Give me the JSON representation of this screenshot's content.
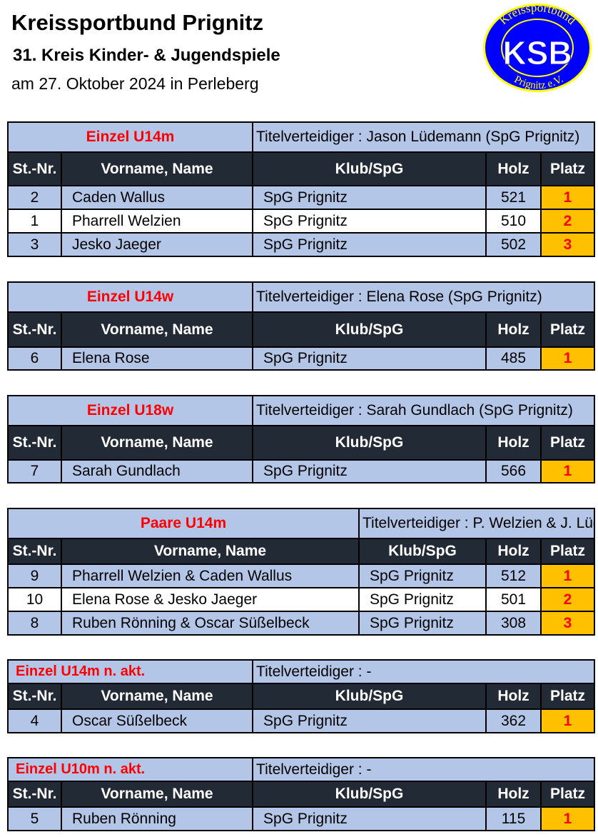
{
  "header": {
    "org": "Kreissportbund Prignitz",
    "event": "31. Kreis Kinder- & Jugendspiele",
    "date_place": "am 27. Oktober 2024 in Perleberg",
    "logo_text": [
      "Kreissportbund",
      "KSB",
      "Prignitz e.V."
    ]
  },
  "colors": {
    "title_bg": "#b4c6e7",
    "header_bg": "#222a35",
    "place_bg": "#ffc000",
    "accent_red": "#ff0000",
    "logo_blue": "#0000ff",
    "logo_yellow": "#ffff00"
  },
  "sections": [
    {
      "title": "Einzel U14m",
      "defender": "Titelverteidiger : Jason Lüdemann (SpG Prignitz)",
      "columns": [
        "St.-Nr.",
        "Vorname, Name",
        "Klub/SpG",
        "Holz",
        "Platz"
      ],
      "rows": [
        [
          "2",
          "Caden Wallus",
          "SpG Prignitz",
          "521",
          "1"
        ],
        [
          "1",
          "Pharrell Welzien",
          "SpG Prignitz",
          "510",
          "2"
        ],
        [
          "3",
          "Jesko Jaeger",
          "SpG Prignitz",
          "502",
          "3"
        ]
      ]
    },
    {
      "title": "Einzel U14w",
      "defender": "Titelverteidiger : Elena Rose (SpG Prignitz)",
      "columns": [
        "St.-Nr.",
        "Vorname, Name",
        "Klub/SpG",
        "Holz",
        "Platz"
      ],
      "rows": [
        [
          "6",
          "Elena Rose",
          "SpG Prignitz",
          "485",
          "1"
        ]
      ]
    },
    {
      "title": "Einzel U18w",
      "defender": "Titelverteidiger : Sarah Gundlach (SpG Prignitz)",
      "columns": [
        "St.-Nr.",
        "Vorname, Name",
        "Klub/SpG",
        "Holz",
        "Platz"
      ],
      "rows": [
        [
          "7",
          "Sarah Gundlach",
          "SpG Prignitz",
          "566",
          "1"
        ]
      ]
    },
    {
      "title": "Paare U14m",
      "defender": "Titelverteidiger : P. Welzien & J. Lüdemann (SpG PR)",
      "columns": [
        "St.-Nr.",
        "Vorname, Name",
        "Klub/SpG",
        "Holz",
        "Platz"
      ],
      "rows": [
        [
          "9",
          "Pharrell Welzien & Caden Wallus",
          "SpG Prignitz",
          "512",
          "1"
        ],
        [
          "10",
          "Elena Rose & Jesko Jaeger",
          "SpG Prignitz",
          "501",
          "2"
        ],
        [
          "8",
          "Ruben Rönning & Oscar Süßelbeck",
          "SpG Prignitz",
          "308",
          "3"
        ]
      ]
    },
    {
      "title": "Einzel U14m n. akt.",
      "defender": "Titelverteidiger : -",
      "columns": [
        "St.-Nr.",
        "Vorname, Name",
        "Klub/SpG",
        "Holz",
        "Platz"
      ],
      "rows": [
        [
          "4",
          "Oscar Süßelbeck",
          "SpG Prignitz",
          "362",
          "1"
        ]
      ]
    },
    {
      "title": "Einzel U10m n. akt.",
      "defender": "Titelverteidiger : -",
      "columns": [
        "St.-Nr.",
        "Vorname, Name",
        "Klub/SpG",
        "Holz",
        "Platz"
      ],
      "rows": [
        [
          "5",
          "Ruben Rönning",
          "SpG Prignitz",
          "115",
          "1"
        ]
      ]
    }
  ]
}
